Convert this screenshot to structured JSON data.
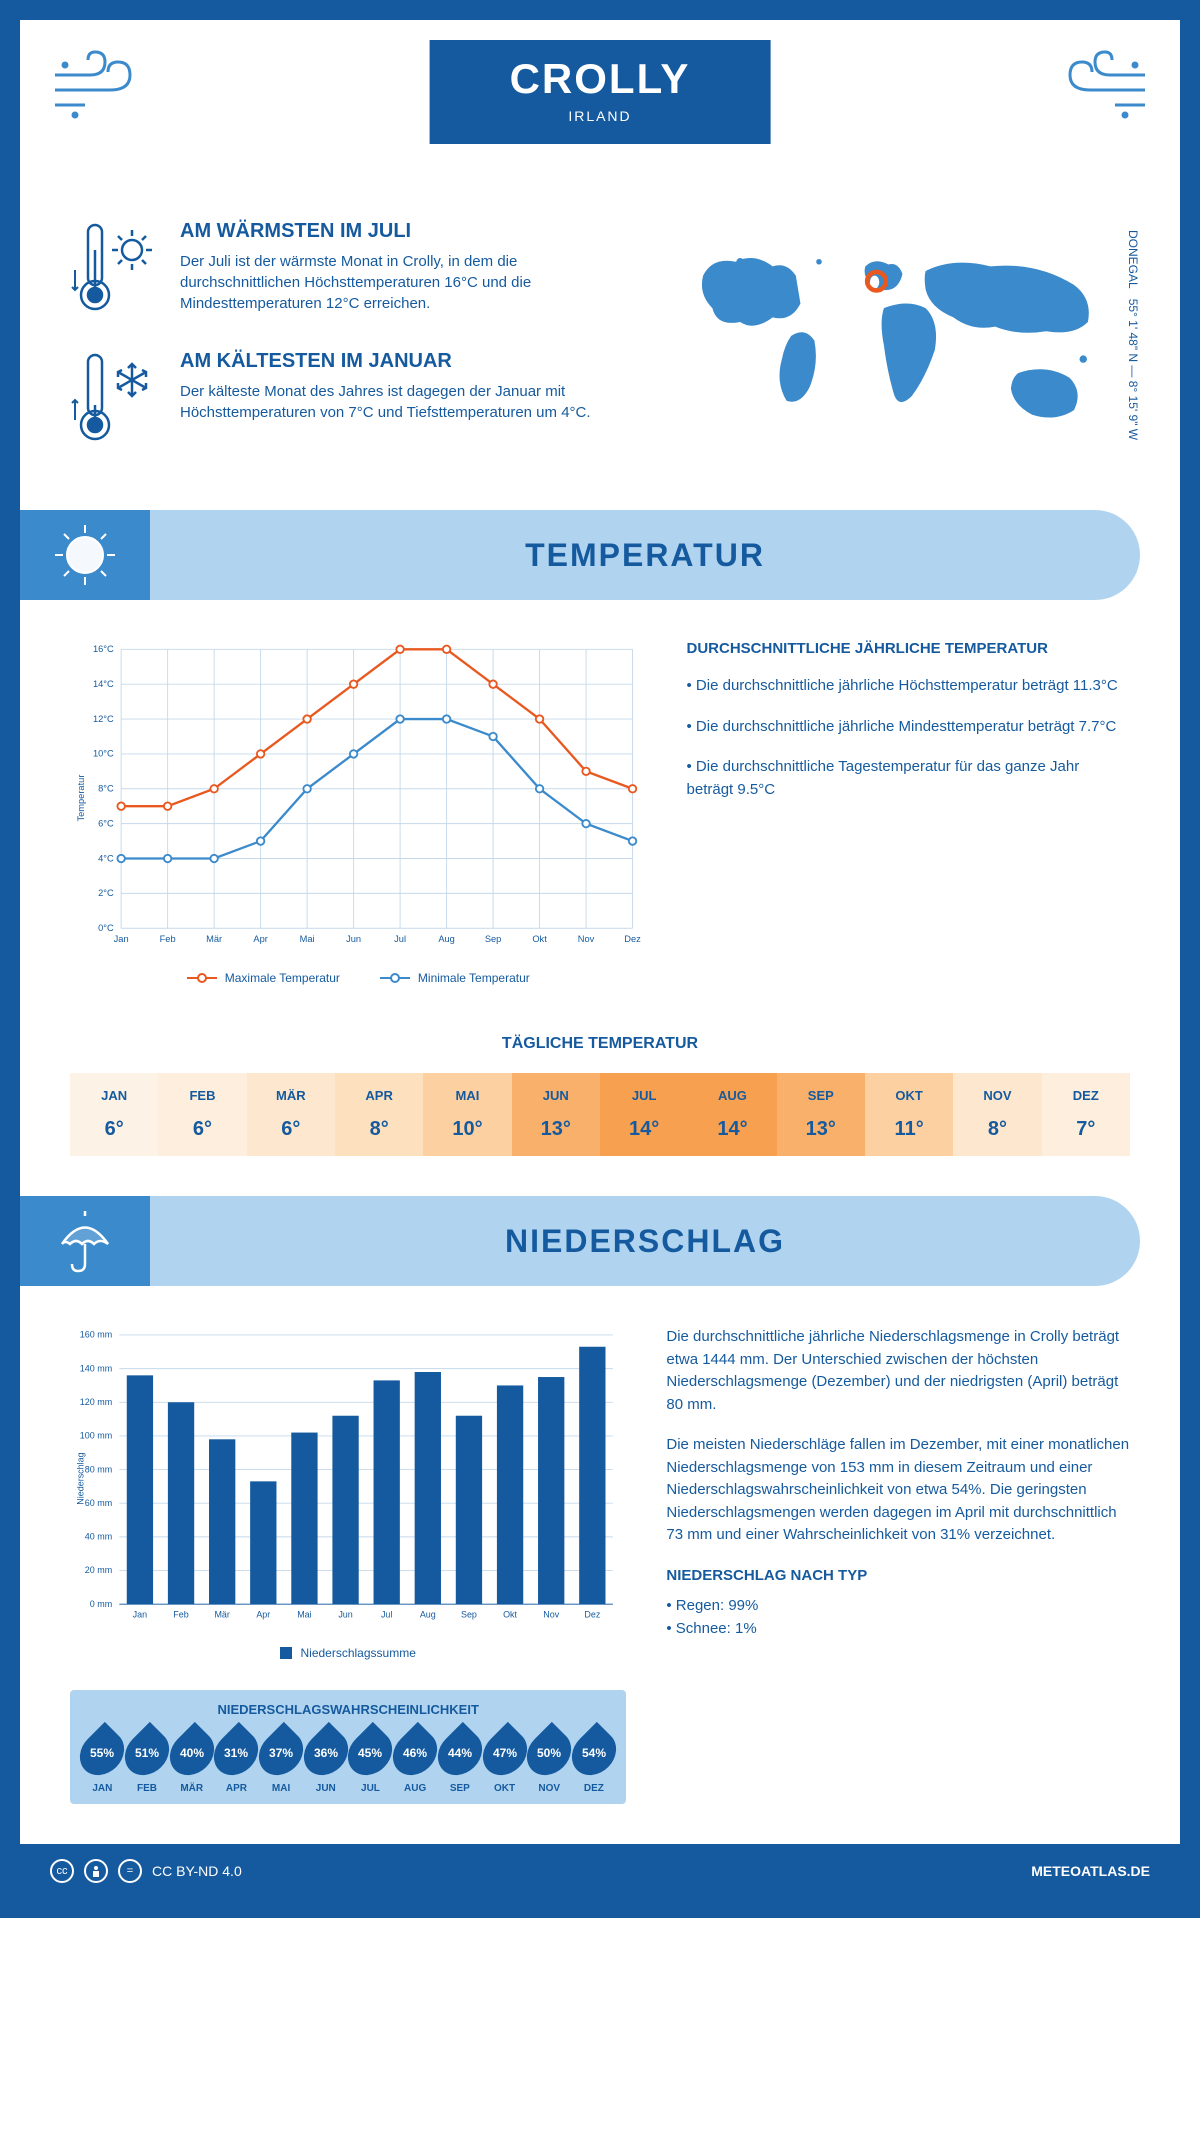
{
  "header": {
    "city": "CROLLY",
    "country": "IRLAND",
    "coords": "55° 1' 48\" N — 8° 15' 9\" W",
    "region": "DONEGAL"
  },
  "warm": {
    "title": "AM WÄRMSTEN IM JULI",
    "text": "Der Juli ist der wärmste Monat in Crolly, in dem die durchschnittlichen Höchsttemperaturen 16°C und die Mindesttemperaturen 12°C erreichen."
  },
  "cold": {
    "title": "AM KÄLTESTEN IM JANUAR",
    "text": "Der kälteste Monat des Jahres ist dagegen der Januar mit Höchsttemperaturen von 7°C und Tiefsttemperaturen um 4°C."
  },
  "temp_section": {
    "band_title": "TEMPERATUR",
    "info_title": "DURCHSCHNITTLICHE JÄHRLICHE TEMPERATUR",
    "b1": "• Die durchschnittliche jährliche Höchsttemperatur beträgt 11.3°C",
    "b2": "• Die durchschnittliche jährliche Mindesttemperatur beträgt 7.7°C",
    "b3": "• Die durchschnittliche Tagestemperatur für das ganze Jahr beträgt 9.5°C",
    "chart": {
      "months": [
        "Jan",
        "Feb",
        "Mär",
        "Apr",
        "Mai",
        "Jun",
        "Jul",
        "Aug",
        "Sep",
        "Okt",
        "Nov",
        "Dez"
      ],
      "max_series": [
        7,
        7,
        8,
        10,
        12,
        14,
        16,
        16,
        14,
        12,
        9,
        8
      ],
      "min_series": [
        4,
        4,
        4,
        5,
        8,
        10,
        12,
        12,
        11,
        8,
        6,
        5
      ],
      "max_color": "#e8581f",
      "min_color": "#3b8acb",
      "ylim": [
        0,
        16
      ],
      "ytick_step": 2,
      "ylabel": "Temperatur",
      "legend_max": "Maximale Temperatur",
      "legend_min": "Minimale Temperatur",
      "grid_color": "#c5d9eb"
    }
  },
  "daily": {
    "title": "TÄGLICHE TEMPERATUR",
    "months": [
      "JAN",
      "FEB",
      "MÄR",
      "APR",
      "MAI",
      "JUN",
      "JUL",
      "AUG",
      "SEP",
      "OKT",
      "NOV",
      "DEZ"
    ],
    "values": [
      "6°",
      "6°",
      "6°",
      "8°",
      "10°",
      "13°",
      "14°",
      "14°",
      "13°",
      "11°",
      "8°",
      "7°"
    ],
    "colors": [
      "#fcf2e6",
      "#fdeedd",
      "#fde8cf",
      "#fde0bd",
      "#fcd0a0",
      "#f9b06b",
      "#f7a050",
      "#f7a050",
      "#f9b06b",
      "#fcd0a0",
      "#fde8cf",
      "#fdeedd"
    ]
  },
  "precip_section": {
    "band_title": "NIEDERSCHLAG",
    "chart": {
      "months": [
        "Jan",
        "Feb",
        "Mär",
        "Apr",
        "Mai",
        "Jun",
        "Jul",
        "Aug",
        "Sep",
        "Okt",
        "Nov",
        "Dez"
      ],
      "values": [
        136,
        120,
        98,
        73,
        102,
        112,
        133,
        138,
        112,
        130,
        135,
        153
      ],
      "bar_color": "#155a9e",
      "ylim": [
        0,
        160
      ],
      "ytick_step": 20,
      "ylabel": "Niederschlag",
      "legend": "Niederschlagssumme",
      "grid_color": "#c5d9eb"
    },
    "p1": "Die durchschnittliche jährliche Niederschlagsmenge in Crolly beträgt etwa 1444 mm. Der Unterschied zwischen der höchsten Niederschlagsmenge (Dezember) und der niedrigsten (April) beträgt 80 mm.",
    "p2": "Die meisten Niederschläge fallen im Dezember, mit einer monatlichen Niederschlagsmenge von 153 mm in diesem Zeitraum und einer Niederschlagswahrscheinlichkeit von etwa 54%. Die geringsten Niederschlagsmengen werden dagegen im April mit durchschnittlich 73 mm und einer Wahrscheinlichkeit von 31% verzeichnet.",
    "type_title": "NIEDERSCHLAG NACH TYP",
    "t1": "• Regen: 99%",
    "t2": "• Schnee: 1%"
  },
  "prob": {
    "title": "NIEDERSCHLAGSWAHRSCHEINLICHKEIT",
    "months": [
      "JAN",
      "FEB",
      "MÄR",
      "APR",
      "MAI",
      "JUN",
      "JUL",
      "AUG",
      "SEP",
      "OKT",
      "NOV",
      "DEZ"
    ],
    "values": [
      "55%",
      "51%",
      "40%",
      "31%",
      "37%",
      "36%",
      "45%",
      "46%",
      "44%",
      "47%",
      "50%",
      "54%"
    ]
  },
  "footer": {
    "license": "CC BY-ND 4.0",
    "site": "METEOATLAS.DE"
  }
}
